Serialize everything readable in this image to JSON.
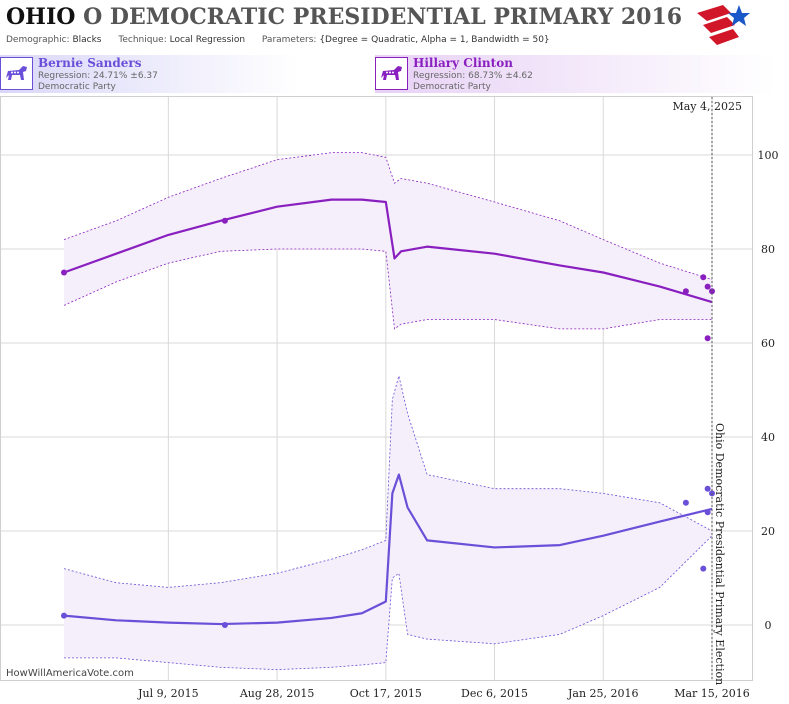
{
  "header": {
    "state": "OHIO",
    "event": "O DEMOCRATIC PRESIDENTIAL PRIMARY 2016",
    "demographic_label": "Demographic:",
    "demographic_value": "Blacks",
    "technique_label": "Technique:",
    "technique_value": "Local Regression",
    "parameters_label": "Parameters:",
    "parameters_value": "{Degree = Quadratic, Alpha = 1, Bandwidth = 50}"
  },
  "candidates": [
    {
      "name": "Bernie Sanders",
      "regression": "Regression: 24.71% ±6.37",
      "party": "Democratic Party",
      "color": "#6a4fd8"
    },
    {
      "name": "Hillary Clinton",
      "regression": "Regression: 68.73% ±4.62",
      "party": "Democratic Party",
      "color": "#8a1fc0"
    }
  ],
  "colors": {
    "clinton": "#8a1fc0",
    "sanders": "#6a4fd8",
    "band": "#f4effa",
    "grid": "#d9d9d9"
  },
  "chart_data": {
    "type": "line",
    "x_axis": {
      "ticks": [
        "Jul 9, 2015",
        "Aug 28, 2015",
        "Oct 17, 2015",
        "Dec 6, 2015",
        "Jan 25, 2016",
        "Mar 15, 2016"
      ]
    },
    "y_axis": {
      "range": [
        -10,
        110
      ],
      "ticks": [
        "0",
        "20",
        "40",
        "60",
        "80",
        "100"
      ]
    },
    "today_label": "May 4, 2025",
    "event_label": "Ohio Democratic Presidential Primary Election",
    "watermark": "HowWillAmericaVote.com",
    "series": [
      {
        "name": "Hillary Clinton",
        "key": "clinton",
        "x": [
          "2015-05-22",
          "2015-06-15",
          "2015-07-09",
          "2015-08-02",
          "2015-08-28",
          "2015-09-22",
          "2015-10-06",
          "2015-10-17",
          "2015-10-21",
          "2015-10-24",
          "2015-11-05",
          "2015-12-06",
          "2016-01-05",
          "2016-01-25",
          "2016-02-20",
          "2016-03-15"
        ],
        "y": [
          75,
          79,
          83,
          86,
          89,
          90.5,
          90.5,
          90,
          78,
          79.5,
          80.5,
          79,
          76.5,
          75,
          72,
          68.7
        ],
        "upper": [
          82,
          86,
          91,
          95,
          99,
          100.5,
          100.5,
          99.5,
          94,
          95,
          94,
          90,
          86,
          82,
          77,
          73.5
        ],
        "lower": [
          68,
          73,
          77,
          79.5,
          80,
          80,
          80,
          79.5,
          63,
          64,
          65,
          65,
          63,
          63,
          65,
          65
        ],
        "points_x": [
          "2015-05-22",
          "2015-08-04",
          "2016-03-03",
          "2016-03-11",
          "2016-03-13",
          "2016-03-15"
        ],
        "points_y": [
          75,
          86,
          71,
          74,
          72,
          71
        ],
        "outlier_x": [
          "2016-03-13"
        ],
        "outlier_y": [
          61
        ]
      },
      {
        "name": "Bernie Sanders",
        "key": "sanders",
        "x": [
          "2015-05-22",
          "2015-06-15",
          "2015-07-09",
          "2015-08-02",
          "2015-08-28",
          "2015-09-22",
          "2015-10-06",
          "2015-10-17",
          "2015-10-20",
          "2015-10-23",
          "2015-10-27",
          "2015-11-05",
          "2015-12-06",
          "2016-01-05",
          "2016-01-25",
          "2016-02-20",
          "2016-03-15"
        ],
        "y": [
          2,
          1,
          0.5,
          0.2,
          0.5,
          1.5,
          2.5,
          5,
          28,
          32,
          25,
          18,
          16.5,
          17,
          19,
          22,
          24.7
        ],
        "upper": [
          12,
          9,
          8,
          9,
          11,
          14,
          16,
          18,
          48,
          53,
          45,
          32,
          29,
          29,
          28,
          26,
          20
        ],
        "lower": [
          -7,
          -7,
          -8,
          -9,
          -9.5,
          -9,
          -8.5,
          -8,
          10,
          11,
          -2,
          -3,
          -4,
          -2,
          2,
          8,
          19
        ],
        "points_x": [
          "2015-05-22",
          "2015-08-04",
          "2016-03-03",
          "2016-03-11",
          "2016-03-13",
          "2016-03-15"
        ],
        "points_y": [
          2,
          0,
          26,
          12,
          29,
          28
        ],
        "outlier_x": [
          "2016-03-13"
        ],
        "outlier_y": [
          24
        ]
      }
    ]
  }
}
